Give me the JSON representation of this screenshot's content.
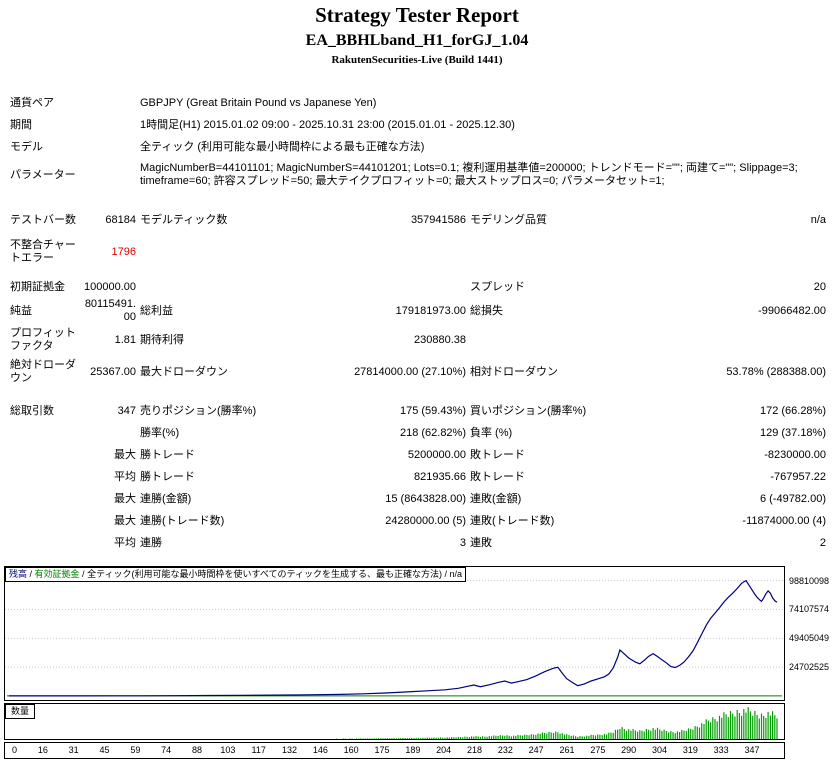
{
  "header": {
    "title": "Strategy Tester Report",
    "subtitle": "EA_BBHLband_H1_forGJ_1.04",
    "build": "RakutenSecurities-Live (Build 1441)"
  },
  "report": {
    "rows": {
      "symbol": {
        "l1": "通貨ペア",
        "span": "GBPJPY (Great Britain Pound vs Japanese Yen)"
      },
      "period": {
        "l1": "期間",
        "span": "1時間足(H1) 2015.01.02 09:00 - 2025.10.31 23:00 (2015.01.01 - 2025.12.30)"
      },
      "model": {
        "l1": "モデル",
        "span": "全ティック (利用可能な最小時間枠による最も正確な方法)"
      },
      "params": {
        "l1": "パラメーター",
        "span": "MagicNumberB=44101101; MagicNumberS=44101201; Lots=0.1; 複利運用基準値=200000; トレンドモード=\"\"; 両建て=\"\"; Slippage=3; timeframe=60; 許容スプレッド=50; 最大テイクプロフィット=0; 最大ストップロス=0; パラメータセット=1;"
      },
      "bars": {
        "l1": "テストバー数",
        "v1": "68184",
        "l2": "モデルティック数",
        "v2": "357941586",
        "l3": "モデリング品質",
        "v3": "n/a"
      },
      "mismatch": {
        "l1": "不整合チャートエラー",
        "v1": "1796"
      },
      "deposit": {
        "l1": "初期証拠金",
        "v1": "100000.00",
        "l3": "スプレッド",
        "v3": "20"
      },
      "net": {
        "l1": "純益",
        "v1": "80115491.00",
        "l2": "総利益",
        "v2": "179181973.00",
        "l3": "総損失",
        "v3": "-99066482.00"
      },
      "pf": {
        "l1": "プロフィットファクタ",
        "v1": "1.81",
        "l2": "期待利得",
        "v2": "230880.38"
      },
      "dd": {
        "l1": "絶対ドローダウン",
        "v1": "25367.00",
        "l2": "最大ドローダウン",
        "v2": "27814000.00 (27.10%)",
        "l3": "相対ドローダウン",
        "v3": "53.78% (288388.00)"
      },
      "trades": {
        "l1": "総取引数",
        "v1": "347",
        "l2": "売りポジション(勝率%)",
        "v2": "175 (59.43%)",
        "l3": "買いポジション(勝率%)",
        "v3": "172 (66.28%)"
      },
      "winloss": {
        "l2": "勝率(%)",
        "v2": "218 (62.82%)",
        "l3": "負率 (%)",
        "v3": "129 (37.18%)"
      },
      "largest": {
        "v1": "最大",
        "l2": "勝トレード",
        "v2": "5200000.00",
        "l3": "敗トレード",
        "v3": "-8230000.00"
      },
      "average": {
        "v1": "平均",
        "l2": "勝トレード",
        "v2": "821935.66",
        "l3": "敗トレード",
        "v3": "-767957.22"
      },
      "maxconsec": {
        "v1": "最大",
        "l2": "連勝(金額)",
        "v2": "15 (8643828.00)",
        "l3": "連敗(金額)",
        "v3": "6 (-49782.00)"
      },
      "maximal": {
        "v1": "最大",
        "l2": "連勝(トレード数)",
        "v2": "24280000.00 (5)",
        "l3": "連敗(トレード数)",
        "v3": "-11874000.00 (4)"
      },
      "avgconsec": {
        "v1": "平均",
        "l2": "連勝",
        "v2": "3",
        "l3": "連敗",
        "v3": "2"
      }
    }
  },
  "chart_data": {
    "type": "line",
    "legend": {
      "balance": "残高",
      "equity": "有効証拠金",
      "model": "全ティック(利用可能な最小時間枠を使いすべてのティックを生成する、最も正確な方法)",
      "quality": "n/a",
      "sep": " / "
    },
    "lots_label": "数量",
    "y_ticks": [
      24702525,
      49405049,
      74107574,
      98810098
    ],
    "x_ticks": [
      0,
      16,
      31,
      45,
      59,
      74,
      88,
      103,
      117,
      132,
      146,
      160,
      175,
      189,
      204,
      218,
      232,
      247,
      261,
      275,
      290,
      304,
      319,
      333,
      347
    ],
    "x_range": [
      0,
      347
    ],
    "y_axis_max": 107000000,
    "equity_baseline": 100000,
    "grid": "horizontal-dotted",
    "legend_position": "top-left",
    "colors": {
      "balance": "#000080",
      "equity": "#008000",
      "lots": "#00A000",
      "grid": "#c9c9c9"
    },
    "series": [
      {
        "name": "balance",
        "points": [
          [
            0,
            100000
          ],
          [
            15,
            110000
          ],
          [
            30,
            125000
          ],
          [
            45,
            150000
          ],
          [
            60,
            200000
          ],
          [
            75,
            280000
          ],
          [
            90,
            400000
          ],
          [
            105,
            550000
          ],
          [
            120,
            750000
          ],
          [
            135,
            1000000
          ],
          [
            150,
            1400000
          ],
          [
            160,
            1900000
          ],
          [
            170,
            2600000
          ],
          [
            180,
            3500000
          ],
          [
            190,
            4500000
          ],
          [
            197,
            5300000
          ],
          [
            203,
            6600000
          ],
          [
            207,
            8200000
          ],
          [
            210,
            9400000
          ],
          [
            213,
            8000000
          ],
          [
            217,
            9600000
          ],
          [
            221,
            11600000
          ],
          [
            224,
            12800000
          ],
          [
            227,
            11000000
          ],
          [
            230,
            12200000
          ],
          [
            234,
            14000000
          ],
          [
            238,
            17200000
          ],
          [
            242,
            20800000
          ],
          [
            246,
            23800000
          ],
          [
            248,
            24600000
          ],
          [
            250,
            19500000
          ],
          [
            252,
            14800000
          ],
          [
            255,
            11000000
          ],
          [
            257,
            8800000
          ],
          [
            260,
            10400000
          ],
          [
            263,
            12800000
          ],
          [
            266,
            14600000
          ],
          [
            269,
            16400000
          ],
          [
            271,
            18800000
          ],
          [
            273,
            24000000
          ],
          [
            275,
            33000000
          ],
          [
            276,
            39500000
          ],
          [
            278,
            36000000
          ],
          [
            280,
            32500000
          ],
          [
            283,
            29000000
          ],
          [
            285,
            27600000
          ],
          [
            287,
            30500000
          ],
          [
            289,
            34000000
          ],
          [
            291,
            36200000
          ],
          [
            293,
            33800000
          ],
          [
            295,
            31000000
          ],
          [
            297,
            28400000
          ],
          [
            299,
            25200000
          ],
          [
            301,
            24400000
          ],
          [
            303,
            26200000
          ],
          [
            305,
            29000000
          ],
          [
            307,
            33500000
          ],
          [
            309,
            38500000
          ],
          [
            311,
            45500000
          ],
          [
            313,
            53000000
          ],
          [
            315,
            60500000
          ],
          [
            317,
            66500000
          ],
          [
            319,
            71000000
          ],
          [
            321,
            75500000
          ],
          [
            323,
            80500000
          ],
          [
            325,
            84500000
          ],
          [
            327,
            88000000
          ],
          [
            329,
            92000000
          ],
          [
            331,
            96500000
          ],
          [
            333,
            98810098
          ],
          [
            334,
            96000000
          ],
          [
            335,
            93000000
          ],
          [
            336,
            90000000
          ],
          [
            337,
            87000000
          ],
          [
            338,
            84500000
          ],
          [
            339,
            82500000
          ],
          [
            340,
            81000000
          ],
          [
            341,
            84000000
          ],
          [
            342,
            87500000
          ],
          [
            343,
            90000000
          ],
          [
            344,
            88000000
          ],
          [
            345,
            84000000
          ],
          [
            346,
            81500000
          ],
          [
            347,
            80215491
          ]
        ]
      }
    ]
  }
}
